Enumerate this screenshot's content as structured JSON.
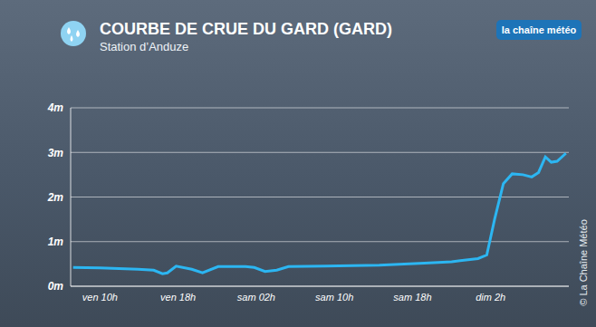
{
  "chart_data": {
    "type": "line",
    "title": "COURBE DE CRUE DU GARD (GARD)",
    "subtitle": "Station d’Anduze",
    "annotations": [
      "la chaîne météo",
      "© La Chaîne Météo"
    ],
    "x": [
      7.25,
      10,
      13.9,
      15.5,
      16.4,
      16.9,
      17.8,
      19.4,
      20.5,
      22.1,
      24.9,
      25.8,
      26.9,
      28.1,
      29.3,
      33.1,
      38.6,
      43.2,
      46,
      48.7,
      49.6,
      50.4,
      51.3,
      52.2,
      53.3,
      54.2,
      54.9,
      55.6,
      56.2,
      56.8,
      57.7
    ],
    "series": [
      {
        "name": "Station d’Anduze",
        "color": "#2cb6f2",
        "values": [
          0.42,
          0.41,
          0.38,
          0.36,
          0.28,
          0.3,
          0.45,
          0.38,
          0.3,
          0.44,
          0.44,
          0.42,
          0.33,
          0.36,
          0.44,
          0.45,
          0.47,
          0.52,
          0.55,
          0.62,
          0.7,
          1.5,
          2.3,
          2.52,
          2.5,
          2.45,
          2.55,
          2.9,
          2.78,
          2.8,
          2.98
        ]
      }
    ],
    "xlim": [
      7,
      58
    ],
    "xticks": [
      {
        "value": 10,
        "label": "ven 10h"
      },
      {
        "value": 18,
        "label": "ven 18h"
      },
      {
        "value": 26,
        "label": "sam 02h"
      },
      {
        "value": 34,
        "label": "sam 10h"
      },
      {
        "value": 42,
        "label": "sam 18h"
      },
      {
        "value": 50,
        "label": "dim 2h"
      }
    ],
    "ylim": [
      0,
      4
    ],
    "yticks": [
      {
        "value": 0,
        "label": "0m"
      },
      {
        "value": 1,
        "label": "1m"
      },
      {
        "value": 2,
        "label": "2m"
      },
      {
        "value": 3,
        "label": "3m"
      },
      {
        "value": 4,
        "label": "4m"
      }
    ],
    "grid": true,
    "marker": "none",
    "line_style": "solid"
  }
}
